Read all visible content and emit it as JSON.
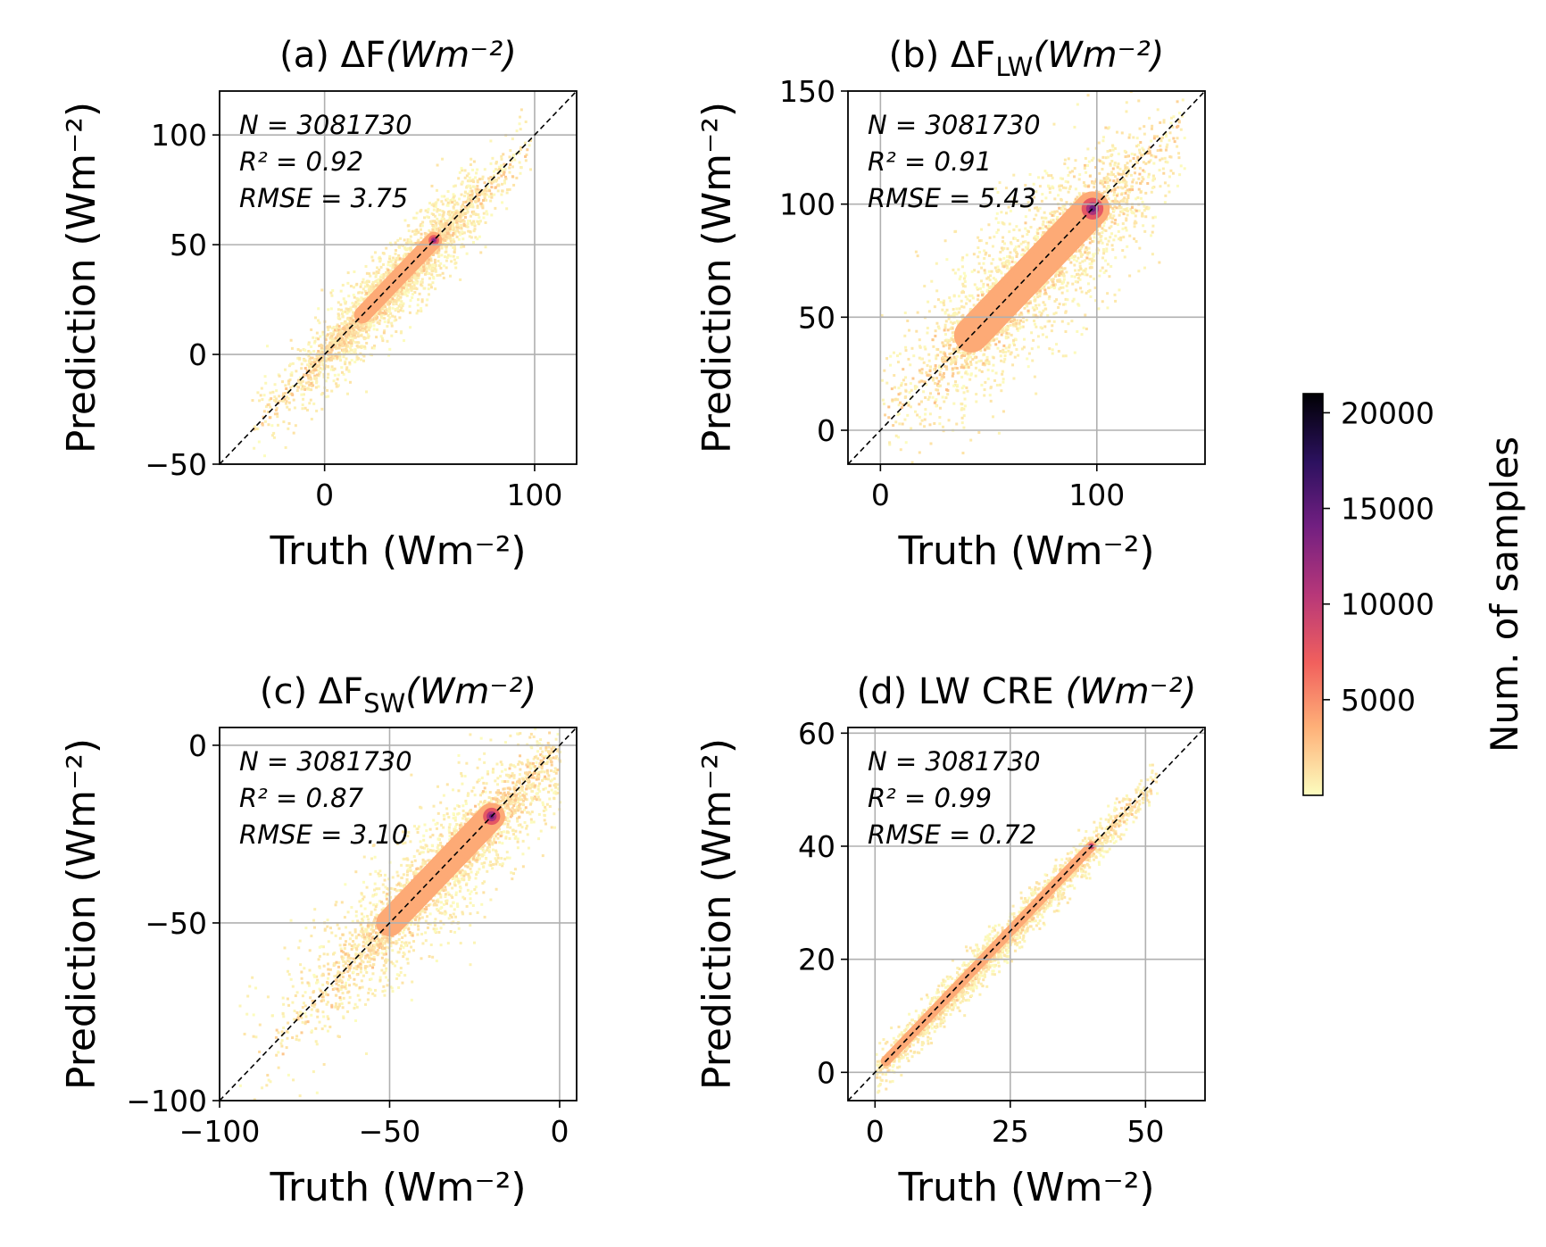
{
  "figure": {
    "colorbar": {
      "label": "Num. of samples",
      "ticks": [
        5000,
        10000,
        15000,
        20000
      ],
      "tick_labels": [
        "5000",
        "10000",
        "15000",
        "20000"
      ],
      "range": [
        0,
        21000
      ],
      "colormap": "magma_r",
      "colors": [
        "#fcfdbf",
        "#feb078",
        "#f1605d",
        "#b73779",
        "#721f81",
        "#2c115f",
        "#000004"
      ]
    }
  },
  "chart_data": [
    {
      "type": "heatmap",
      "panel": "a",
      "title_prefix": "(a) ΔF",
      "title_sub": "",
      "title_units": "(Wm⁻²)",
      "xlabel": "Truth (Wm⁻²)",
      "ylabel": "Prediction (Wm⁻²)",
      "xlim": [
        -50,
        120
      ],
      "ylim": [
        -50,
        120
      ],
      "xticks": [
        0,
        100
      ],
      "xtick_labels": [
        "0",
        "100"
      ],
      "yticks": [
        -50,
        0,
        50,
        100
      ],
      "ytick_labels": [
        "−50",
        "0",
        "50",
        "100"
      ],
      "grid": true,
      "identity_line": true,
      "stats": [
        "N = 3081730",
        "R² = 0.92",
        "RMSE = 3.75"
      ],
      "density": {
        "center": [
          32,
          32
        ],
        "spread_along": 28,
        "spread_across": 6,
        "core_from": 18,
        "core_to": 52,
        "x_range": [
          -35,
          100
        ]
      }
    },
    {
      "type": "heatmap",
      "panel": "b",
      "title_prefix": "(b) ΔF",
      "title_sub": "LW",
      "title_units": "(Wm⁻²)",
      "xlabel": "Truth (Wm⁻²)",
      "ylabel": "Prediction (Wm⁻²)",
      "xlim": [
        -15,
        150
      ],
      "ylim": [
        -15,
        150
      ],
      "xticks": [
        0,
        100
      ],
      "xtick_labels": [
        "0",
        "100"
      ],
      "yticks": [
        0,
        50,
        100,
        150
      ],
      "ytick_labels": [
        "0",
        "50",
        "100",
        "150"
      ],
      "grid": true,
      "identity_line": true,
      "stats": [
        "N = 3081730",
        "R² = 0.91",
        "RMSE = 5.43"
      ],
      "density": {
        "center": [
          70,
          70
        ],
        "spread_along": 32,
        "spread_across": 12,
        "core_from": 42,
        "core_to": 98,
        "x_range": [
          0,
          140
        ]
      }
    },
    {
      "type": "heatmap",
      "panel": "c",
      "title_prefix": "(c) ΔF",
      "title_sub": "SW",
      "title_units": "(Wm⁻²)",
      "xlabel": "Truth (Wm⁻²)",
      "ylabel": "Prediction (Wm⁻²)",
      "xlim": [
        -100,
        5
      ],
      "ylim": [
        -100,
        5
      ],
      "xticks": [
        -100,
        -50,
        0
      ],
      "xtick_labels": [
        "−100",
        "−50",
        "0"
      ],
      "yticks": [
        -100,
        -50,
        0
      ],
      "ytick_labels": [
        "−100",
        "−50",
        "0"
      ],
      "grid": true,
      "identity_line": true,
      "stats": [
        "N = 3081730",
        "R² = 0.87",
        "RMSE = 3.10"
      ],
      "density": {
        "center": [
          -35,
          -35
        ],
        "spread_along": 22,
        "spread_across": 6,
        "core_from": -50,
        "core_to": -20,
        "x_range": [
          -98,
          0
        ]
      }
    },
    {
      "type": "heatmap",
      "panel": "d",
      "title_prefix": "(d) LW CRE ",
      "title_sub": "",
      "title_units": "(Wm⁻²)",
      "xlabel": "Truth (Wm⁻²)",
      "ylabel": "Prediction (Wm⁻²)",
      "xlim": [
        -5,
        61
      ],
      "ylim": [
        -5,
        61
      ],
      "xticks": [
        0,
        25,
        50
      ],
      "xtick_labels": [
        "0",
        "25",
        "50"
      ],
      "yticks": [
        0,
        20,
        40,
        60
      ],
      "ytick_labels": [
        "0",
        "20",
        "40",
        "60"
      ],
      "grid": true,
      "identity_line": true,
      "stats": [
        "N = 3081730",
        "R² = 0.99",
        "RMSE = 0.72"
      ],
      "density": {
        "center": [
          22,
          22
        ],
        "spread_along": 16,
        "spread_across": 1.2,
        "core_from": 2,
        "core_to": 40,
        "x_range": [
          0,
          52
        ]
      }
    }
  ]
}
